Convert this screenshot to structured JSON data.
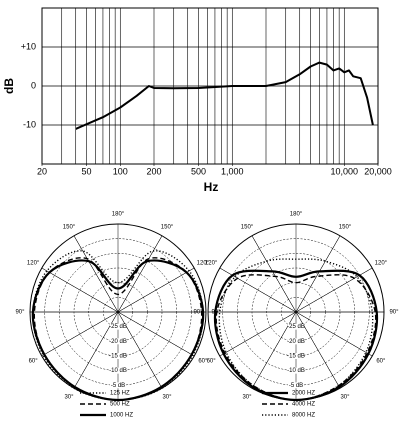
{
  "chart_data": [
    {
      "type": "line",
      "xlabel": "Hz",
      "ylabel": "dB",
      "xscale": "log",
      "grid": true,
      "color": "#000000",
      "xlim": [
        20,
        20000
      ],
      "ylim": [
        -20,
        20
      ],
      "xticks": [
        20,
        50,
        100,
        200,
        500,
        {
          "value": 1000,
          "label": "1,000"
        },
        {
          "value": 10000,
          "label": "10,000"
        },
        {
          "value": 20000,
          "label": "20,000"
        }
      ],
      "yticks": [
        {
          "value": 10,
          "label": "+10"
        },
        0,
        -10
      ],
      "x": [
        40,
        70,
        100,
        140,
        180,
        200,
        300,
        500,
        1000,
        2000,
        3000,
        4000,
        5000,
        6000,
        7000,
        8000,
        9000,
        10000,
        11000,
        12000,
        14000,
        16000,
        18000
      ],
      "values": [
        -11,
        -8,
        -5.5,
        -2.5,
        0,
        -0.5,
        -0.6,
        -0.5,
        0,
        0,
        1,
        3,
        5,
        6,
        5.5,
        4,
        4.5,
        3.5,
        4,
        2.5,
        2,
        -3,
        -10
      ]
    },
    {
      "type": "polar",
      "rlim": [
        -30,
        0
      ],
      "rticks": [
        {
          "value": -5,
          "label": "-5 dB"
        },
        {
          "value": -10,
          "label": "-10 dB"
        },
        {
          "value": -15,
          "label": "-15 dB"
        },
        {
          "value": -20,
          "label": "-20 dB"
        },
        {
          "value": -25,
          "label": "-25 dB"
        }
      ],
      "thetaticks": [
        {
          "value": 30,
          "label": "30°"
        },
        {
          "value": 60,
          "label": "60°"
        },
        {
          "value": 90,
          "label": "90°"
        },
        {
          "value": 120,
          "label": "120°"
        },
        {
          "value": 150,
          "label": "150°"
        },
        {
          "value": 180,
          "label": "180°"
        },
        {
          "value": 210,
          "label": "150°"
        },
        {
          "value": 240,
          "label": "120°"
        },
        {
          "value": 270,
          "label": "90°"
        },
        {
          "value": 300,
          "label": "60°"
        },
        {
          "value": 330,
          "label": "30°"
        }
      ],
      "theta": [
        0,
        30,
        60,
        90,
        120,
        150,
        180,
        210,
        240,
        270,
        300,
        330
      ],
      "series": [
        {
          "name": "125 HZ",
          "color": "#000000",
          "style": "dotted",
          "values": [
            0,
            0,
            -0.5,
            -1,
            -2,
            -6,
            -20,
            -6,
            -2,
            -1,
            -0.5,
            0
          ]
        },
        {
          "name": "500 HZ",
          "color": "#000000",
          "style": "dashed",
          "values": [
            0,
            -0.5,
            -1,
            -1.5,
            -3,
            -9,
            -24,
            -9,
            -3,
            -1.5,
            -1,
            -0.5
          ]
        },
        {
          "name": "1000 HZ",
          "color": "#000000",
          "style": "solid",
          "values": [
            0,
            -0.5,
            -1,
            -1,
            -3,
            -10,
            -22,
            -10,
            -3,
            -1,
            -1,
            -0.5
          ]
        }
      ]
    },
    {
      "type": "polar",
      "rlim": [
        -30,
        0
      ],
      "rticks": [
        {
          "value": -5,
          "label": "-5 dB"
        },
        {
          "value": -10,
          "label": "-10 dB"
        },
        {
          "value": -15,
          "label": "-15 dB"
        },
        {
          "value": -20,
          "label": "-20 dB"
        },
        {
          "value": -25,
          "label": "-25 dB"
        }
      ],
      "thetaticks": [
        {
          "value": 30,
          "label": "30°"
        },
        {
          "value": 60,
          "label": "60°"
        },
        {
          "value": 90,
          "label": "90°"
        },
        {
          "value": 120,
          "label": "120°"
        },
        {
          "value": 150,
          "label": "150°"
        },
        {
          "value": 180,
          "label": "180°"
        },
        {
          "value": 210,
          "label": "150°"
        },
        {
          "value": 240,
          "label": "120°"
        },
        {
          "value": 270,
          "label": "90°"
        },
        {
          "value": 300,
          "label": "60°"
        },
        {
          "value": 330,
          "label": "30°"
        }
      ],
      "theta": [
        0,
        30,
        60,
        90,
        120,
        150,
        180,
        210,
        240,
        270,
        300,
        330
      ],
      "series": [
        {
          "name": "2000 HZ",
          "color": "#000000",
          "style": "solid",
          "values": [
            0,
            -0.5,
            -1.5,
            -2.5,
            -5,
            -14,
            -18,
            -14,
            -5,
            -2.5,
            -1.5,
            -0.5
          ]
        },
        {
          "name": "4000 HZ",
          "color": "#000000",
          "style": "dashed",
          "values": [
            0,
            -1,
            -2,
            -3,
            -7,
            -16,
            -20,
            -16,
            -7,
            -3,
            -2,
            -1
          ]
        },
        {
          "name": "8000 HZ",
          "color": "#000000",
          "style": "dotted",
          "values": [
            0,
            -1,
            -2.5,
            -4,
            -6,
            -10,
            -12,
            -10,
            -6,
            -4,
            -2.5,
            -1
          ]
        }
      ]
    }
  ]
}
